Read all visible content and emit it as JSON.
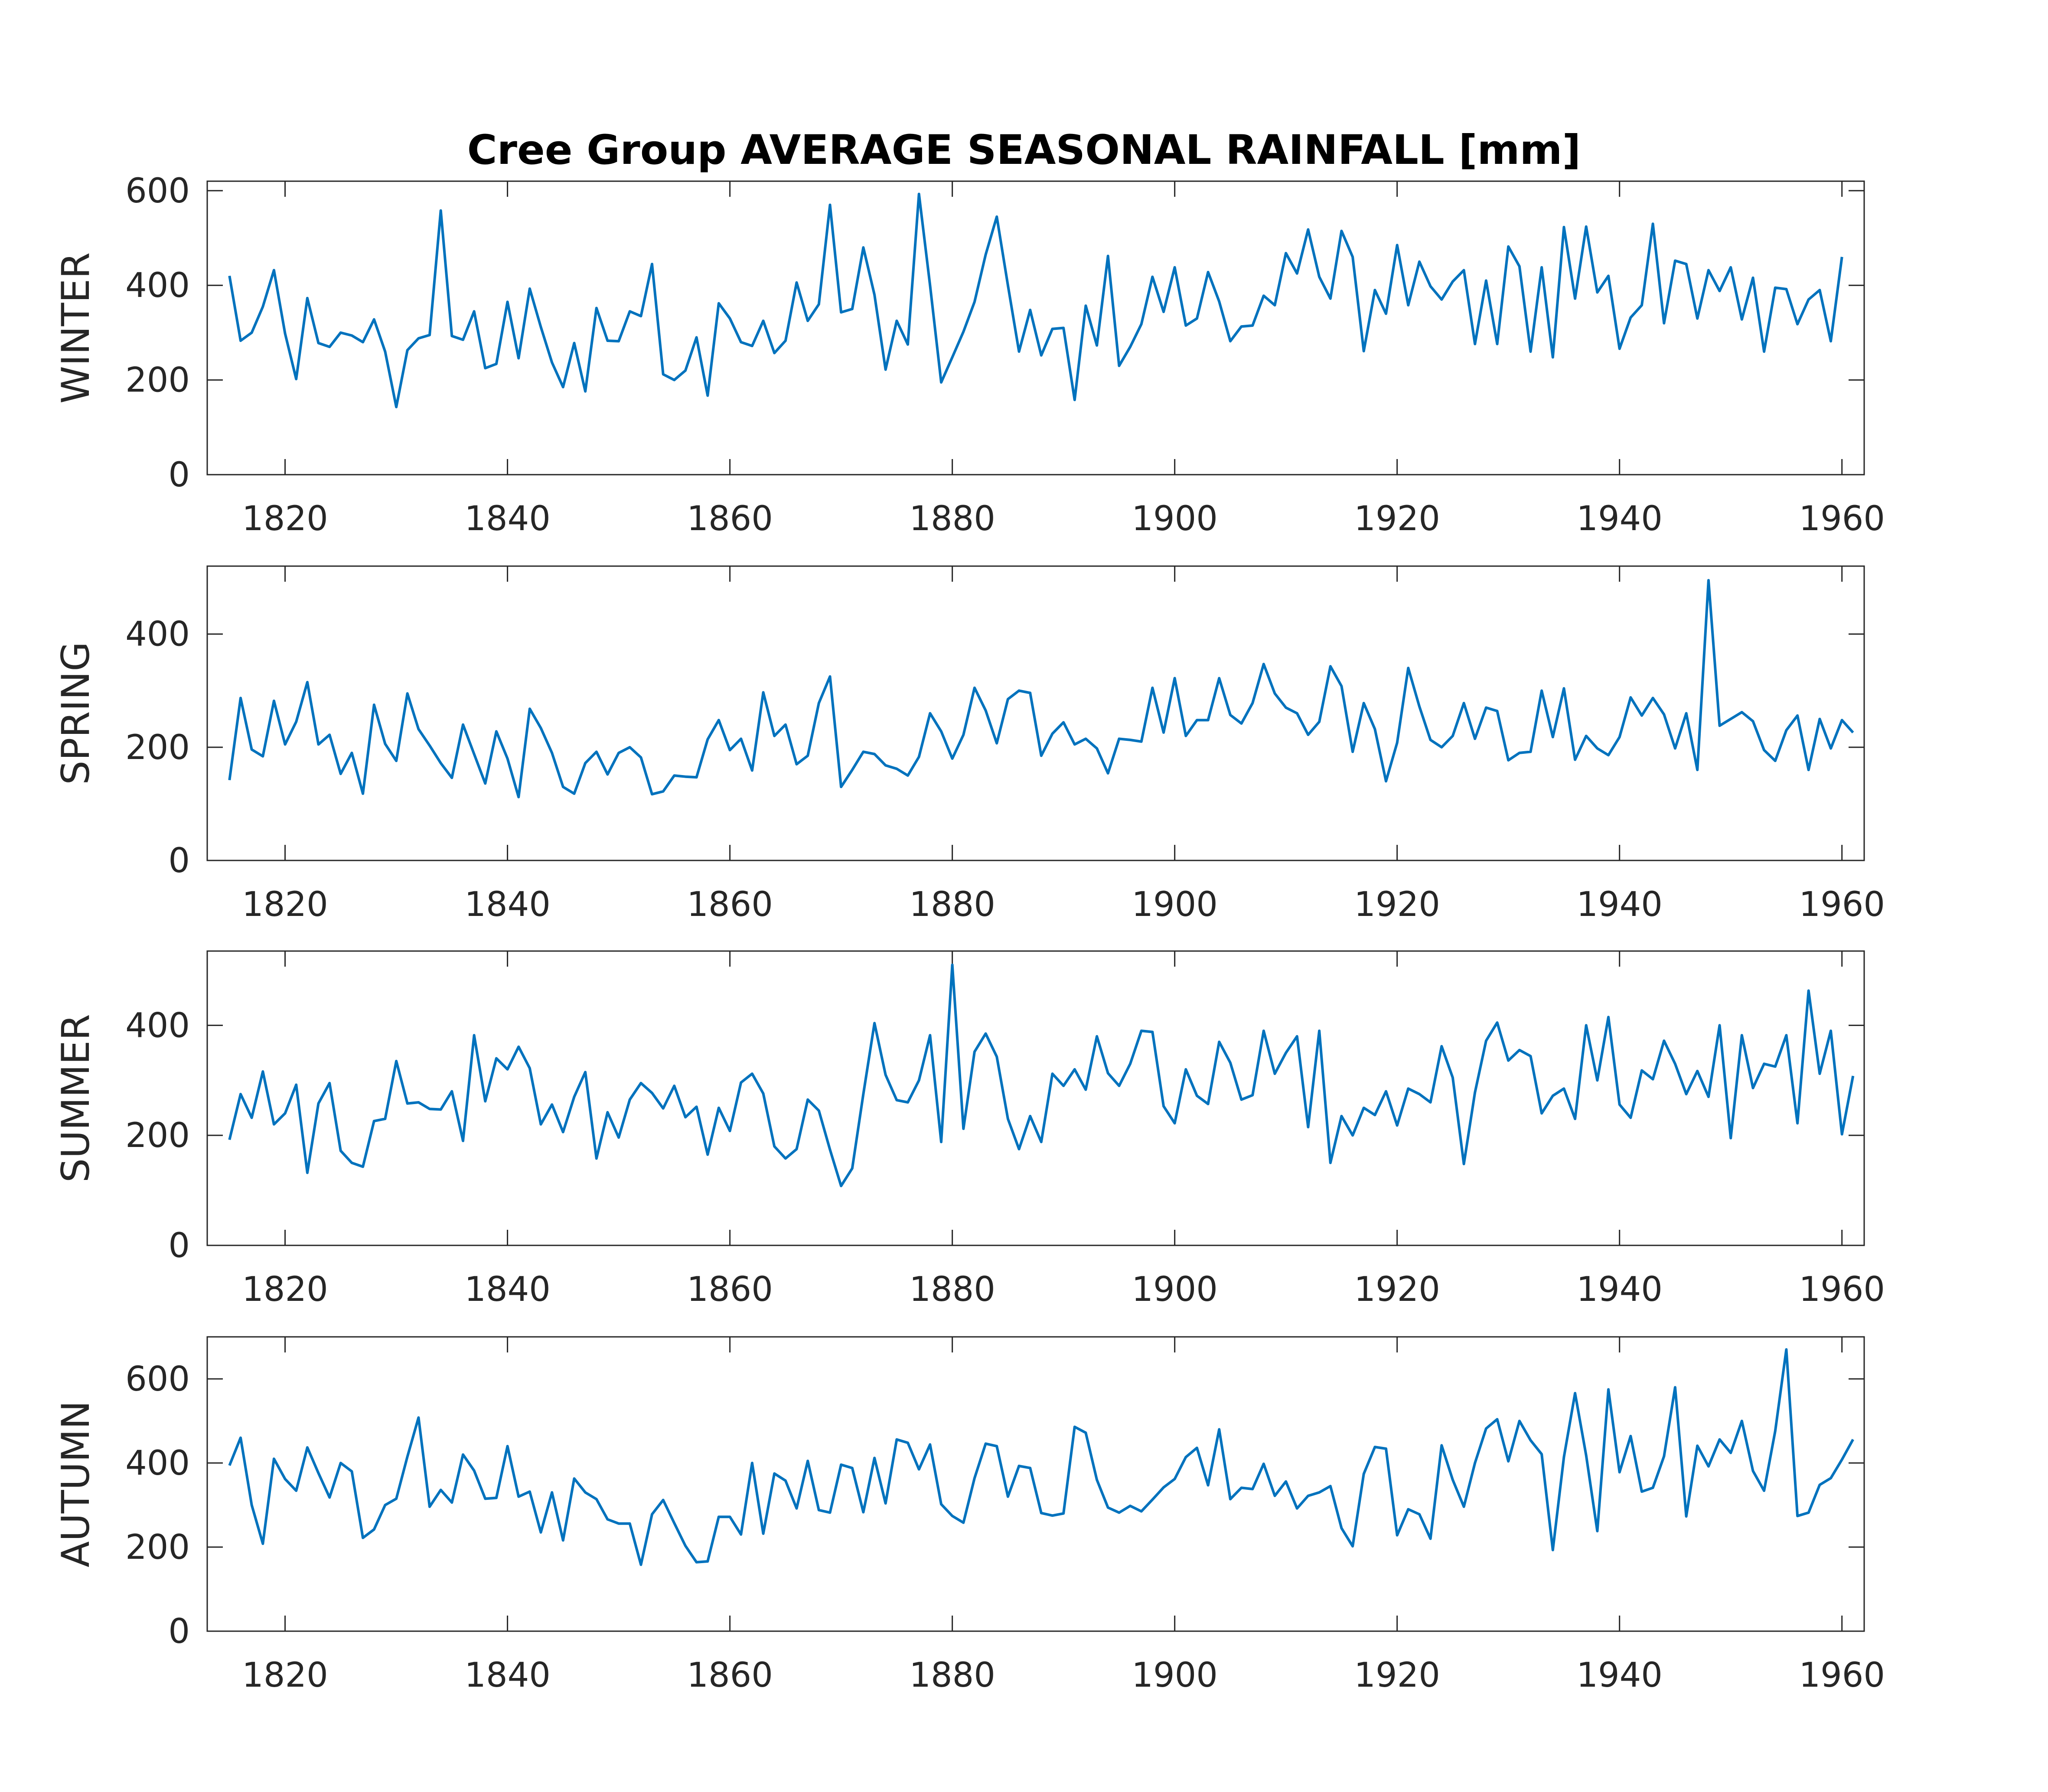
{
  "chart_data": {
    "type": "line",
    "title": "Cree Group AVERAGE SEASONAL RAINFALL [mm]",
    "line_color": "#0072BD",
    "grid": false,
    "x_start_year": 1815,
    "xlim": [
      1813,
      1962
    ],
    "xticks": [
      1820,
      1840,
      1860,
      1880,
      1900,
      1920,
      1940,
      1960
    ],
    "panels": [
      {
        "ylabel": "WINTER",
        "ylim": [
          0,
          620
        ],
        "yticks": [
          0,
          200,
          400,
          600
        ],
        "values": [
          420,
          283,
          300,
          355,
          432,
          298,
          202,
          373,
          278,
          270,
          300,
          294,
          280,
          328,
          260,
          143,
          263,
          288,
          295,
          558,
          293,
          285,
          345,
          225,
          234,
          365,
          246,
          393,
          312,
          237,
          185,
          278,
          176,
          352,
          283,
          282,
          345,
          335,
          445,
          212,
          200,
          220,
          290,
          167,
          362,
          330,
          280,
          272,
          325,
          257,
          283,
          406,
          325,
          360,
          570,
          343,
          350,
          480,
          380,
          222,
          325,
          275,
          593,
          400,
          195,
          248,
          302,
          365,
          465,
          545,
          400,
          260,
          348,
          252,
          308,
          310,
          158,
          357,
          273,
          462,
          230,
          270,
          318,
          418,
          344,
          438,
          315,
          330,
          428,
          366,
          282,
          313,
          315,
          378,
          358,
          468,
          425,
          518,
          418,
          372,
          515,
          460,
          261,
          390,
          340,
          485,
          358,
          450,
          398,
          370,
          408,
          432,
          276,
          410,
          276,
          482,
          440,
          260,
          438,
          248,
          523,
          372,
          524,
          385,
          420,
          266,
          332,
          358,
          530,
          320,
          452,
          445,
          330,
          432,
          388,
          438,
          328,
          416,
          260,
          395,
          392,
          318,
          370,
          390,
          282,
          460
        ]
      },
      {
        "ylabel": "SPRING",
        "ylim": [
          0,
          520
        ],
        "yticks": [
          0,
          200,
          400
        ],
        "values": [
          142,
          287,
          196,
          184,
          282,
          205,
          245,
          315,
          205,
          222,
          153,
          190,
          118,
          275,
          206,
          176,
          295,
          232,
          203,
          172,
          146,
          240,
          188,
          136,
          228,
          180,
          112,
          268,
          234,
          190,
          130,
          118,
          172,
          192,
          152,
          190,
          200,
          182,
          117,
          122,
          150,
          148,
          147,
          214,
          248,
          195,
          215,
          159,
          297,
          220,
          240,
          170,
          185,
          278,
          325,
          130,
          160,
          192,
          188,
          168,
          162,
          150,
          183,
          260,
          228,
          180,
          222,
          305,
          265,
          207,
          285,
          300,
          296,
          185,
          224,
          244,
          205,
          215,
          198,
          154,
          215,
          213,
          210,
          305,
          226,
          322,
          220,
          248,
          248,
          322,
          257,
          242,
          278,
          347,
          295,
          270,
          260,
          222,
          245,
          343,
          308,
          192,
          278,
          232,
          140,
          208,
          340,
          272,
          213,
          200,
          220,
          278,
          215,
          270,
          264,
          177,
          190,
          192,
          300,
          218,
          304,
          178,
          220,
          198,
          186,
          218,
          288,
          256,
          287,
          258,
          198,
          260,
          160,
          495,
          238,
          250,
          262,
          246,
          195,
          176,
          230,
          256,
          160,
          250,
          198,
          248,
          226
        ]
      },
      {
        "ylabel": "SUMMER",
        "ylim": [
          0,
          535
        ],
        "yticks": [
          0,
          200,
          400
        ],
        "values": [
          192,
          275,
          232,
          316,
          220,
          240,
          292,
          132,
          258,
          295,
          172,
          150,
          143,
          226,
          230,
          335,
          258,
          260,
          248,
          247,
          280,
          190,
          382,
          262,
          340,
          320,
          361,
          322,
          220,
          256,
          206,
          270,
          315,
          158,
          242,
          196,
          265,
          295,
          277,
          249,
          290,
          233,
          252,
          165,
          250,
          208,
          296,
          312,
          276,
          180,
          158,
          175,
          265,
          245,
          174,
          108,
          140,
          275,
          404,
          310,
          264,
          260,
          300,
          382,
          188,
          510,
          212,
          352,
          385,
          343,
          230,
          175,
          235,
          188,
          312,
          290,
          320,
          283,
          380,
          313,
          290,
          330,
          390,
          388,
          253,
          222,
          320,
          272,
          257,
          370,
          332,
          265,
          273,
          390,
          312,
          350,
          380,
          215,
          390,
          150,
          235,
          200,
          250,
          237,
          280,
          218,
          285,
          275,
          260,
          362,
          305,
          148,
          278,
          372,
          405,
          336,
          355,
          344,
          240,
          272,
          285,
          230,
          400,
          300,
          415,
          256,
          232,
          318,
          302,
          372,
          330,
          275,
          317,
          270,
          400,
          195,
          382,
          286,
          330,
          325,
          382,
          222,
          463,
          312,
          390,
          202,
          308
        ]
      },
      {
        "ylabel": "AUTUMN",
        "ylim": [
          0,
          700
        ],
        "yticks": [
          0,
          200,
          400,
          600
        ],
        "values": [
          394,
          460,
          300,
          208,
          410,
          362,
          334,
          437,
          376,
          318,
          400,
          380,
          222,
          242,
          300,
          315,
          415,
          508,
          296,
          336,
          306,
          420,
          382,
          315,
          317,
          440,
          320,
          332,
          235,
          330,
          216,
          363,
          330,
          314,
          266,
          256,
          256,
          158,
          278,
          312,
          257,
          203,
          164,
          166,
          272,
          272,
          230,
          400,
          232,
          375,
          358,
          292,
          405,
          288,
          282,
          396,
          388,
          283,
          412,
          304,
          456,
          448,
          385,
          444,
          302,
          274,
          258,
          364,
          446,
          440,
          320,
          393,
          388,
          281,
          275,
          280,
          486,
          472,
          360,
          294,
          282,
          298,
          285,
          313,
          342,
          362,
          414,
          436,
          347,
          480,
          314,
          341,
          338,
          398,
          322,
          356,
          292,
          322,
          330,
          345,
          245,
          202,
          374,
          438,
          434,
          228,
          290,
          278,
          220,
          442,
          360,
          296,
          400,
          482,
          504,
          404,
          500,
          454,
          421,
          193,
          414,
          566,
          418,
          238,
          575,
          378,
          464,
          332,
          341,
          416,
          580,
          273,
          441,
          392,
          456,
          424,
          500,
          381,
          334,
          476,
          670,
          274,
          282,
          348,
          364,
          408,
          456
        ]
      }
    ]
  }
}
